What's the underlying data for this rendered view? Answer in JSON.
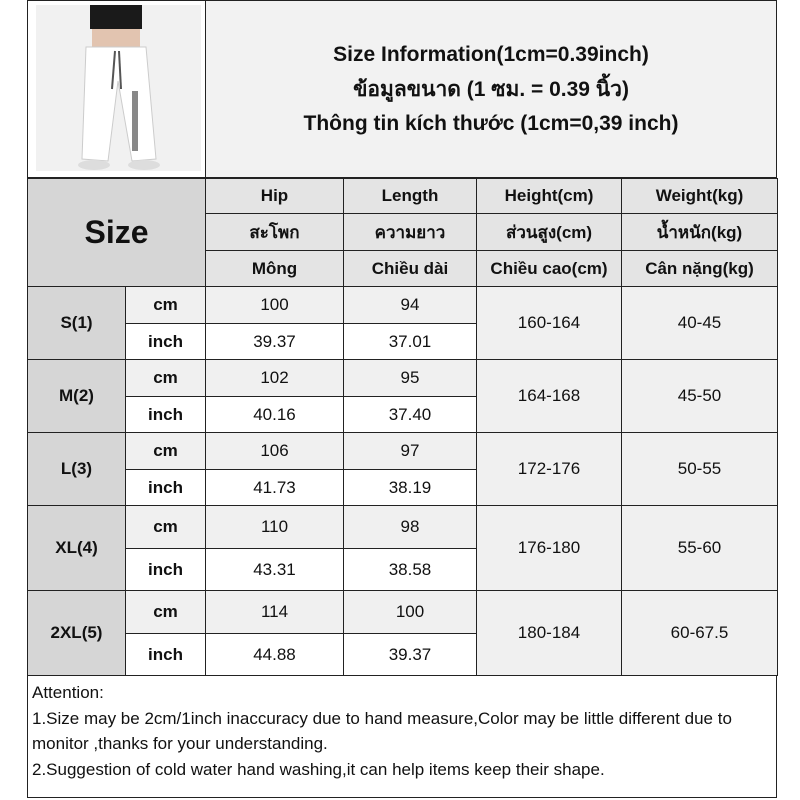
{
  "header": {
    "lines": [
      "Size Information(1cm=0.39inch)",
      "ข้อมูลขนาด (1 ซม. = 0.39 นิ้ว)",
      "Thông tin kích thước (1cm=0,39 inch)"
    ]
  },
  "table": {
    "size_label": "Size",
    "columns": [
      [
        "Hip",
        "สะโพก",
        "Mông"
      ],
      [
        "Length",
        "ความยาว",
        "Chiều dài"
      ],
      [
        "Height(cm)",
        "ส่วนสูง(cm)",
        "Chiều cao(cm)"
      ],
      [
        "Weight(kg)",
        "น้ำหนัก(kg)",
        "Cân nặng(kg)"
      ]
    ],
    "unit_cm": "cm",
    "unit_inch": "inch",
    "rows": [
      {
        "size": "S(1)",
        "cm": [
          "100",
          "94"
        ],
        "inch": [
          "39.37",
          "37.01"
        ],
        "height": "160-164",
        "weight": "40-45"
      },
      {
        "size": "M(2)",
        "cm": [
          "102",
          "95"
        ],
        "inch": [
          "40.16",
          "37.40"
        ],
        "height": "164-168",
        "weight": "45-50"
      },
      {
        "size": "L(3)",
        "cm": [
          "106",
          "97"
        ],
        "inch": [
          "41.73",
          "38.19"
        ],
        "height": "172-176",
        "weight": "50-55"
      },
      {
        "size": "XL(4)",
        "cm": [
          "110",
          "98"
        ],
        "inch": [
          "43.31",
          "38.58"
        ],
        "height": "176-180",
        "weight": "55-60"
      },
      {
        "size": "2XL(5)",
        "cm": [
          "114",
          "100"
        ],
        "inch": [
          "44.88",
          "39.37"
        ],
        "height": "180-184",
        "weight": "60-67.5"
      }
    ]
  },
  "attention": {
    "title": "Attention:",
    "lines": [
      "1.Size may be 2cm/1inch inaccuracy due to hand measure,Color may be little different due to monitor ,thanks for your understanding.",
      "2.Suggestion of cold water hand washing,it can help items keep their shape."
    ]
  }
}
